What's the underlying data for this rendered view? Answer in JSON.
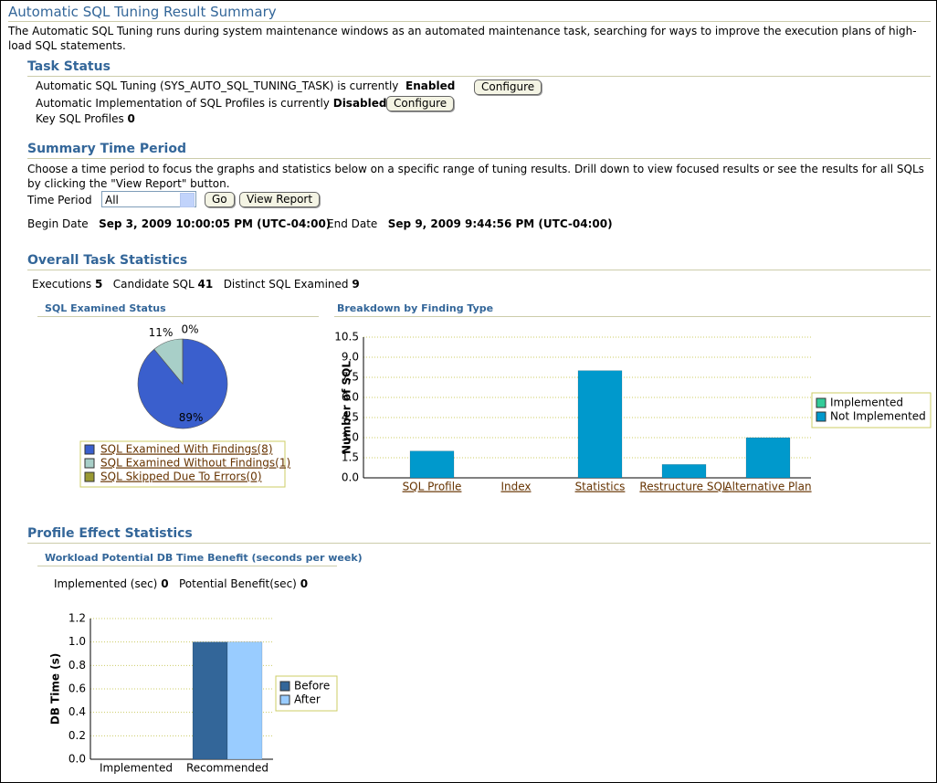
{
  "header": {
    "title": "Automatic SQL Tuning Result Summary",
    "description": "The Automatic SQL Tuning runs during system maintenance windows as an automated maintenance task, searching for ways to improve the execution plans of high-load SQL statements."
  },
  "task_status": {
    "heading": "Task Status",
    "rows": [
      {
        "text": "Automatic SQL Tuning (SYS_AUTO_SQL_TUNING_TASK) is currently",
        "status": "Enabled",
        "button": "Configure"
      },
      {
        "text": "Automatic Implementation of SQL Profiles is currently",
        "status": "Disabled",
        "button": "Configure"
      },
      {
        "text": "Key SQL Profiles",
        "status": "0"
      }
    ]
  },
  "summary_time_period": {
    "heading": "Summary Time Period",
    "description": "Choose a time period to focus the graphs and statistics below on a specific range of tuning results. Drill down to view focused results or see the results for all SQLs by clicking the \"View Report\" button.",
    "time_period_label": "Time Period",
    "time_period_value": "All",
    "go_button": "Go",
    "report_button": "View Report",
    "begin_label": "Begin Date",
    "begin_value": "Sep 3, 2009 10:00:05 PM (UTC-04:00)",
    "end_label": "End Date",
    "end_value": "Sep 9, 2009 9:44:56 PM (UTC-04:00)"
  },
  "overall_task_statistics": {
    "heading": "Overall Task Statistics",
    "stats": [
      {
        "label": "Executions",
        "value": "5"
      },
      {
        "label": "Candidate SQL",
        "value": "41"
      },
      {
        "label": "Distinct SQL Examined",
        "value": "9"
      }
    ],
    "pie_chart": {
      "type": "pie",
      "title": "SQL Examined Status",
      "categories": [
        "SQL Examined With Findings(8)",
        "SQL Examined Without Findings(1)",
        "SQL Skipped Due To Errors(0)"
      ],
      "values": [
        89,
        11,
        0
      ],
      "value_labels": [
        "89%",
        "11%",
        "0%"
      ],
      "colors": [
        "#3a5fcd",
        "#a8cfc8",
        "#999933"
      ]
    },
    "bar_chart": {
      "type": "bar",
      "title": "Breakdown by Finding Type",
      "y_label": "Number of SQL",
      "categories": [
        "SQL Profile",
        "Index",
        "Statistics",
        "Restructure SQL",
        "Alternative Plan"
      ],
      "series": [
        {
          "name": "Implemented",
          "color": "#33cc99",
          "values": [
            0,
            0,
            0,
            0,
            0
          ]
        },
        {
          "name": "Not Implemented",
          "color": "#0099cc",
          "values": [
            2,
            0,
            8,
            1,
            3
          ]
        }
      ],
      "stacked": true,
      "ylim": [
        0,
        10.5
      ],
      "yticks": [
        {
          "value": 0,
          "label": "0.0"
        },
        1.5,
        {
          "value": 3,
          "label": "3.0"
        },
        4.5,
        {
          "value": 6,
          "label": "6.0"
        },
        7.5,
        {
          "value": 9,
          "label": "9.0"
        },
        10.5
      ],
      "grid": true
    }
  },
  "profile_effect_statistics": {
    "heading": "Profile Effect Statistics",
    "chart_title": "Workload Potential DB Time Benefit (seconds per week)",
    "stats": [
      {
        "label": "Implemented (sec)",
        "value": "0"
      },
      {
        "label": "Potential Benefit(sec)",
        "value": "0"
      }
    ],
    "bar_chart": {
      "type": "bar",
      "y_label": "DB Time (s)",
      "categories": [
        "Implemented",
        "Recommended"
      ],
      "series": [
        {
          "name": "Before",
          "color": "#336699",
          "values": [
            0,
            1
          ]
        },
        {
          "name": "After",
          "color": "#99ccff",
          "values": [
            0,
            1
          ]
        }
      ],
      "stacked": false,
      "ylim": [
        0,
        1.2
      ],
      "yticks": [
        {
          "value": 0,
          "label": "0.0"
        },
        0.2,
        0.4,
        0.6,
        0.8,
        {
          "value": 1,
          "label": "1.0"
        },
        1.2
      ],
      "grid": true
    }
  }
}
